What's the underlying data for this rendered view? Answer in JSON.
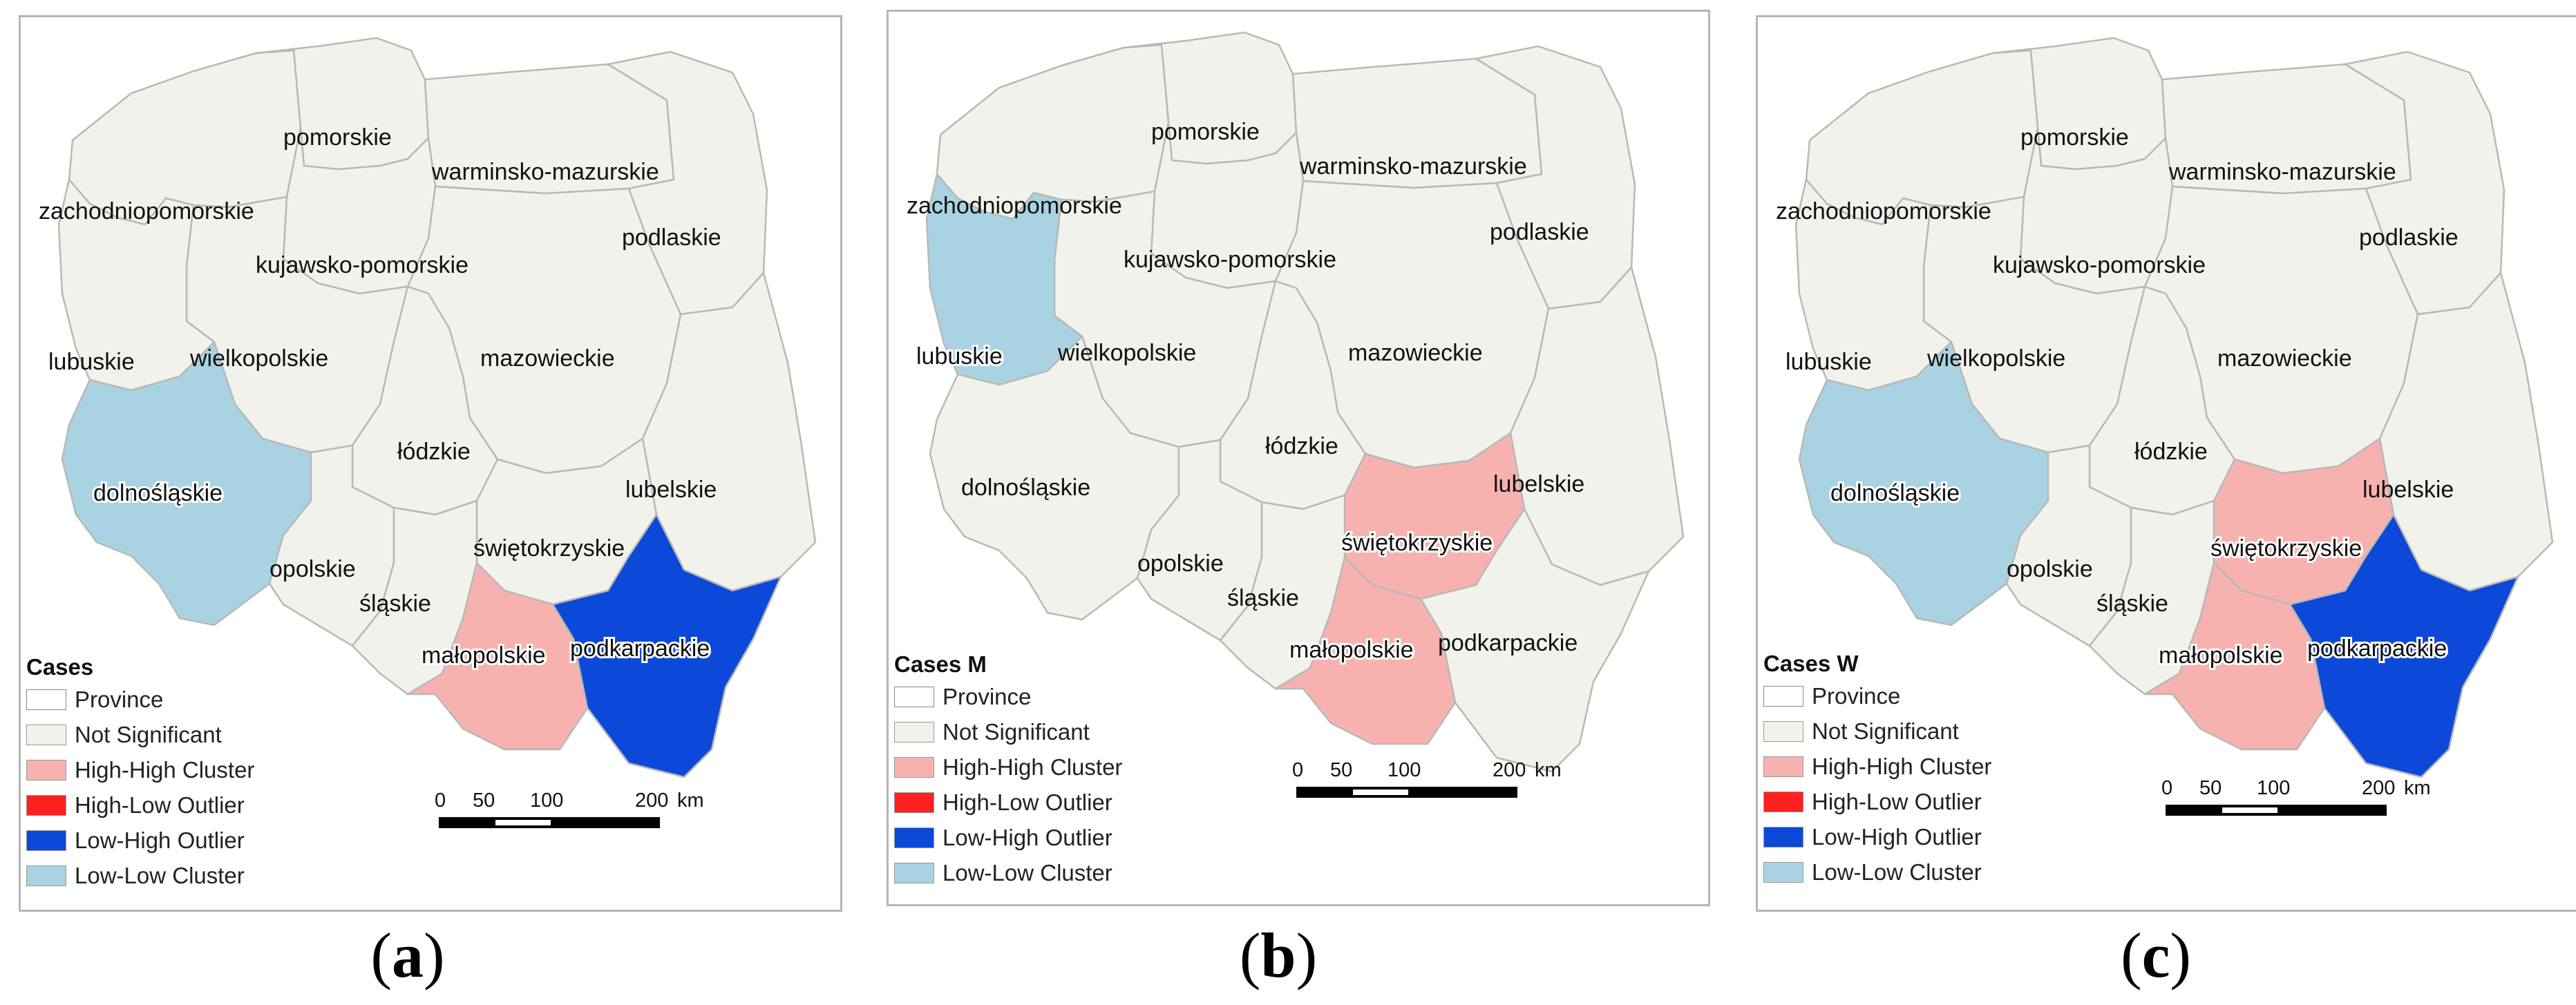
{
  "colors": {
    "province": "#ffffff",
    "not_significant": "#f2f2ec",
    "high_high": "#f7b2b0",
    "high_low": "#ff2020",
    "low_high": "#0d49d8",
    "low_low": "#a9d3e2",
    "border": "#b8b8b8"
  },
  "provinces": [
    "pomorskie",
    "zachodniopomorskie",
    "warminsko-mazurskie",
    "podlaskie",
    "kujawsko-pomorskie",
    "wielkopolskie",
    "lubuskie",
    "mazowieckie",
    "łódzkie",
    "lubelskie",
    "dolnośląskie",
    "opolskie",
    "świętokrzyskie",
    "śląskie",
    "małopolskie",
    "podkarpackie"
  ],
  "legend_items": [
    {
      "label": "Province",
      "color_key": "province"
    },
    {
      "label": "Not Significant",
      "color_key": "not_significant"
    },
    {
      "label": "High-High Cluster",
      "color_key": "high_high"
    },
    {
      "label": "High-Low Outlier",
      "color_key": "high_low"
    },
    {
      "label": "Low-High Outlier",
      "color_key": "low_high"
    },
    {
      "label": "Low-Low Cluster",
      "color_key": "low_low"
    }
  ],
  "scale": {
    "ticks": [
      "0",
      "50",
      "100",
      "200"
    ],
    "unit": "km"
  },
  "panels": [
    {
      "caption_letter": "a",
      "legend_title": "Cases",
      "classes": {
        "dolnośląskie": "low_low",
        "małopolskie": "high_high",
        "podkarpackie": "low_high"
      }
    },
    {
      "caption_letter": "b",
      "legend_title": "Cases M",
      "classes": {
        "lubuskie": "low_low",
        "świętokrzyskie": "high_high",
        "małopolskie": "high_high"
      }
    },
    {
      "caption_letter": "c",
      "legend_title": "Cases W",
      "classes": {
        "dolnośląskie": "low_low",
        "świętokrzyskie": "high_high",
        "małopolskie": "high_high",
        "podkarpackie": "low_high"
      }
    }
  ]
}
